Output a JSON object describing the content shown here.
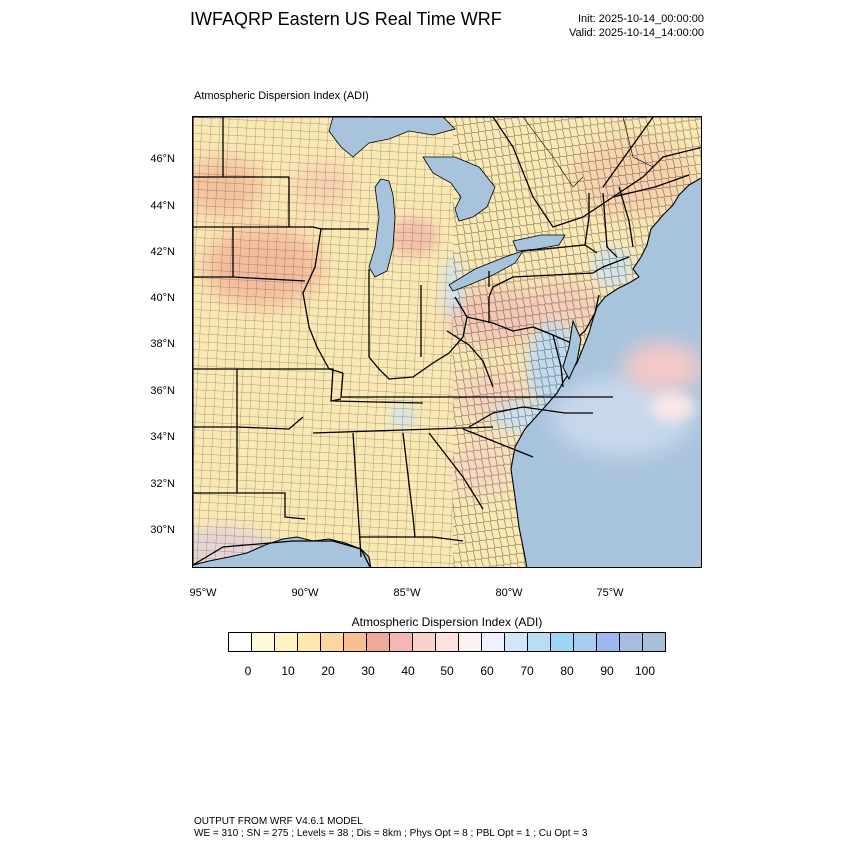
{
  "header": {
    "title": "IWFAQRP Eastern US Real Time WRF",
    "init": "Init: 2025-10-14_00:00:00",
    "valid": "Valid: 2025-10-14_14:00:00"
  },
  "plot": {
    "subtitle": "Atmospheric Dispersion Index   (ADI)",
    "lat_labels": [
      "46°N",
      "44°N",
      "42°N",
      "40°N",
      "38°N",
      "36°N",
      "34°N",
      "32°N",
      "30°N"
    ],
    "lon_labels": [
      "95°W",
      "90°W",
      "85°W",
      "80°W",
      "75°W"
    ],
    "colors": {
      "water": "#a8c4dc",
      "land_base": "#fbe9b4",
      "state_lines": "#000000",
      "county_lines": "#222222"
    }
  },
  "colorbar": {
    "title": "Atmospheric Dispersion Index  (ADI)",
    "ticks": [
      "0",
      "10",
      "20",
      "30",
      "40",
      "50",
      "60",
      "70",
      "80",
      "90",
      "100"
    ],
    "colors": [
      "#ffffff",
      "#fffadc",
      "#fff3c4",
      "#fde8b0",
      "#fbd6a0",
      "#f8c090",
      "#f0a898",
      "#f4b8b4",
      "#f8d0cc",
      "#fbe2e0",
      "#fdf2f2",
      "#eef2ff",
      "#d4e6fa",
      "#b8ddf4",
      "#9ed4f4",
      "#a8ccf0",
      "#9cb8ec",
      "#a8bce0",
      "#a6c0da"
    ]
  },
  "footer": {
    "line1": "OUTPUT FROM WRF V4.6.1 MODEL",
    "line2": "WE = 310 ; SN = 275 ; Levels = 38 ; Dis = 8km ; Phys Opt = 8 ; PBL Opt = 1 ; Cu Opt = 3"
  }
}
